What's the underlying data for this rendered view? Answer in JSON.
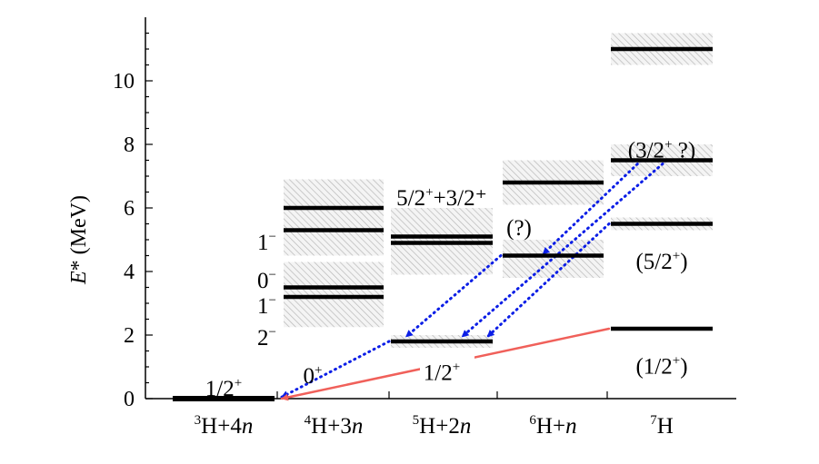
{
  "chart_data": {
    "type": "level-scheme",
    "ylabel_italic": "E",
    "ylabel_rest": "*  (MeV)",
    "ylim": [
      0,
      12
    ],
    "yticks": [
      0,
      2,
      4,
      6,
      8,
      10
    ],
    "columns": [
      {
        "label_sup": "3",
        "label_base": "H+4",
        "label_it": "n"
      },
      {
        "label_sup": "4",
        "label_base": "H+3",
        "label_it": "n"
      },
      {
        "label_sup": "5",
        "label_base": "H+2",
        "label_it": "n"
      },
      {
        "label_sup": "6",
        "label_base": "H+",
        "label_it": "n"
      },
      {
        "label_sup": "7",
        "label_base": "H",
        "label_it": ""
      }
    ],
    "bands": [
      {
        "col": 1,
        "from": 4.5,
        "to": 6.9
      },
      {
        "col": 1,
        "from": 2.25,
        "to": 4.3
      },
      {
        "col": 2,
        "from": 3.9,
        "to": 6.0
      },
      {
        "col": 2,
        "from": 1.6,
        "to": 2.0
      },
      {
        "col": 3,
        "from": 6.1,
        "to": 7.5
      },
      {
        "col": 3,
        "from": 3.8,
        "to": 5.0
      },
      {
        "col": 4,
        "from": 10.5,
        "to": 11.5
      },
      {
        "col": 4,
        "from": 7.0,
        "to": 8.0
      },
      {
        "col": 4,
        "from": 5.3,
        "to": 5.7
      }
    ],
    "levels": [
      {
        "col": 0,
        "E": 0.0
      },
      {
        "col": 1,
        "E": 6.0
      },
      {
        "col": 1,
        "E": 5.3
      },
      {
        "col": 1,
        "E": 3.5
      },
      {
        "col": 1,
        "E": 3.2
      },
      {
        "col": 2,
        "E": 5.1
      },
      {
        "col": 2,
        "E": 4.9
      },
      {
        "col": 2,
        "E": 1.8
      },
      {
        "col": 3,
        "E": 6.8
      },
      {
        "col": 3,
        "E": 4.5
      },
      {
        "col": 4,
        "E": 11.0
      },
      {
        "col": 4,
        "E": 7.5
      },
      {
        "col": 4,
        "E": 5.5
      },
      {
        "col": 4,
        "E": 2.2
      }
    ],
    "labels": [
      {
        "base": "1/2",
        "sup": "+",
        "tail": "",
        "col": 0,
        "E": 0.35,
        "pos": "center"
      },
      {
        "base": "0",
        "sup": "+",
        "tail": "",
        "col": 1,
        "E": 0.75,
        "pos": "inner"
      },
      {
        "base": "1",
        "sup": "−",
        "tail": "",
        "col": 1,
        "E": 4.95,
        "pos": "left"
      },
      {
        "base": "0",
        "sup": "−",
        "tail": "",
        "col": 1,
        "E": 3.75,
        "pos": "left"
      },
      {
        "base": "1",
        "sup": "−",
        "tail": "",
        "col": 1,
        "E": 2.95,
        "pos": "left"
      },
      {
        "base": "2",
        "sup": "−",
        "tail": "",
        "col": 1,
        "E": 1.95,
        "pos": "left"
      },
      {
        "base": "5/2",
        "sup": "+",
        "tail": "+3/2⁺",
        "col": 2,
        "E": 6.35,
        "pos": "center"
      },
      {
        "base": "1/2",
        "sup": "+",
        "tail": "",
        "col": 2,
        "E": 0.85,
        "pos": "center"
      },
      {
        "base": "(?)",
        "sup": "",
        "tail": "",
        "col": 3,
        "E": 5.4,
        "pos": "leftin"
      },
      {
        "base": "(3/2",
        "sup": "+",
        "tail": " ?)",
        "col": 4,
        "E": 7.85,
        "pos": "center"
      },
      {
        "base": "(5/2",
        "sup": "+",
        "tail": ")",
        "col": 4,
        "E": 4.35,
        "pos": "center"
      },
      {
        "base": "(1/2",
        "sup": "+",
        "tail": ")",
        "col": 4,
        "E": 1.05,
        "pos": "center"
      }
    ],
    "transitions": [
      {
        "from": [
          3,
          4.5,
          "left"
        ],
        "to": [
          2,
          1.95,
          0.15
        ],
        "style": "blue-dotted"
      },
      {
        "from": [
          4,
          7.5,
          0.3
        ],
        "to": [
          3,
          4.55,
          0.4
        ],
        "style": "blue-dotted"
      },
      {
        "from": [
          4,
          7.5,
          0.55
        ],
        "to": [
          2,
          1.95,
          0.7
        ],
        "style": "blue-dotted"
      },
      {
        "from": [
          4,
          5.5,
          "left"
        ],
        "to": [
          2,
          1.95,
          0.95
        ],
        "style": "blue-dotted"
      },
      {
        "from": [
          2,
          1.8,
          "left"
        ],
        "to": [
          1,
          0.05,
          "left"
        ],
        "style": "blue-dotted"
      },
      {
        "from": [
          4,
          2.2,
          "left"
        ],
        "to": [
          1,
          0.0,
          "left"
        ],
        "style": "red-solid"
      }
    ],
    "colors": {
      "blue": "#0b1ee6",
      "red": "#f0605a",
      "hatch": "#b8b8b8"
    }
  }
}
